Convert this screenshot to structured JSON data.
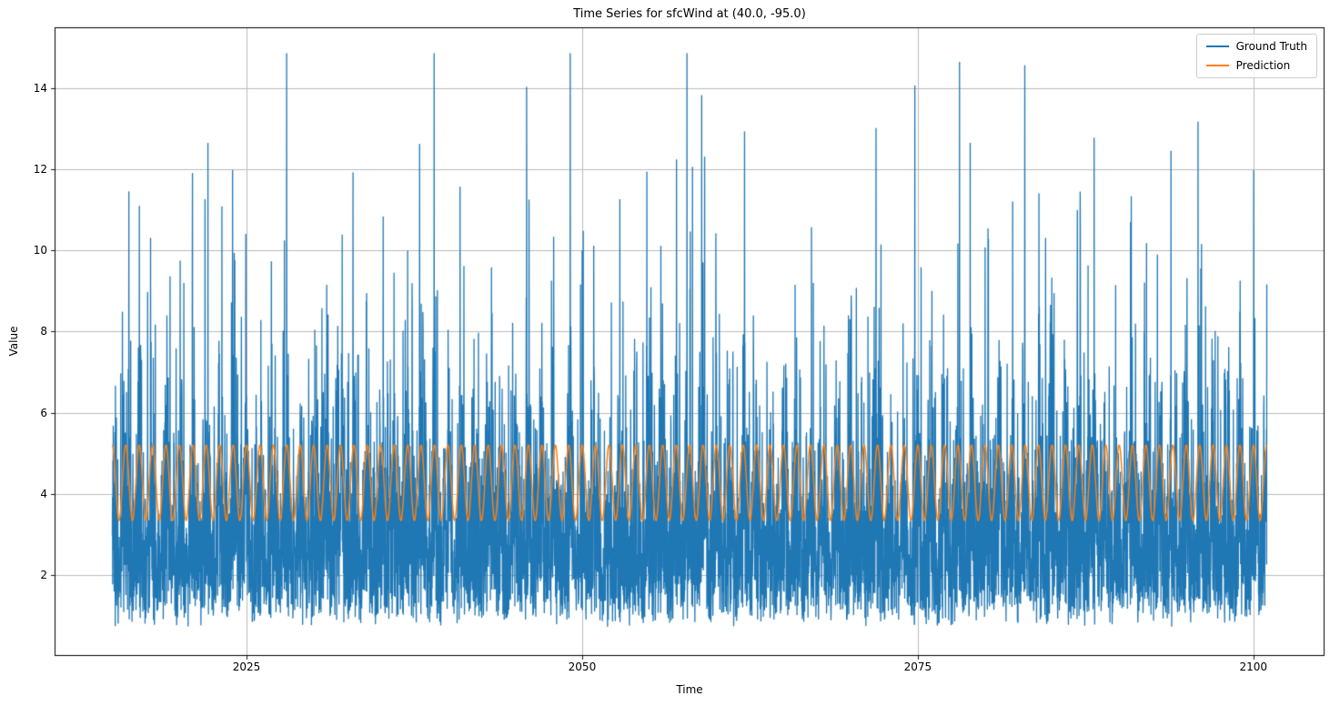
{
  "figure": {
    "background": "#ffffff",
    "text_color": "#000000",
    "grid_color": "#bcbcbc",
    "axes_edge_color": "#000000"
  },
  "chart_data": {
    "type": "line",
    "title": "Time Series for sfcWind at (40.0, -95.0)",
    "xlabel": "Time",
    "ylabel": "Value",
    "xlim": [
      2010.7,
      2105.3
    ],
    "ylim": [
      0.0,
      15.5
    ],
    "grid": true,
    "legend_position": "upper right",
    "x_ticks": {
      "values": [
        2025,
        2050,
        2075,
        2100
      ],
      "labels": [
        "2025",
        "2050",
        "2075",
        "2100"
      ]
    },
    "y_ticks": {
      "values": [
        2,
        4,
        6,
        8,
        10,
        12,
        14
      ],
      "labels": [
        "2",
        "4",
        "6",
        "8",
        "10",
        "12",
        "14"
      ]
    },
    "series": [
      {
        "name": "Ground Truth",
        "color": "#1f77b4",
        "line_width": 1.3,
        "x_start": 2015.0,
        "x_end": 2101.0,
        "points_per_year": 73,
        "value_min": 0.7,
        "value_max": 14.8,
        "typical_band": [
          2.0,
          6.5
        ],
        "synthesis": {
          "seed": 20240,
          "base": 0.7,
          "scale": 1.25,
          "seasonal_strength": 0.32,
          "seasonal_period_years": 1.0,
          "clamp_min": 0.65,
          "clamp_max": 14.85
        }
      },
      {
        "name": "Prediction",
        "color": "#ff7f0e",
        "line_width": 1.5,
        "x_start": 2015.0,
        "x_end": 2101.0,
        "model": "seasonal_sine",
        "mean": 4.27,
        "amplitude": 0.93,
        "period_years": 1.0,
        "value_min": 3.34,
        "value_max": 5.2,
        "samples_per_year": 32
      }
    ]
  }
}
